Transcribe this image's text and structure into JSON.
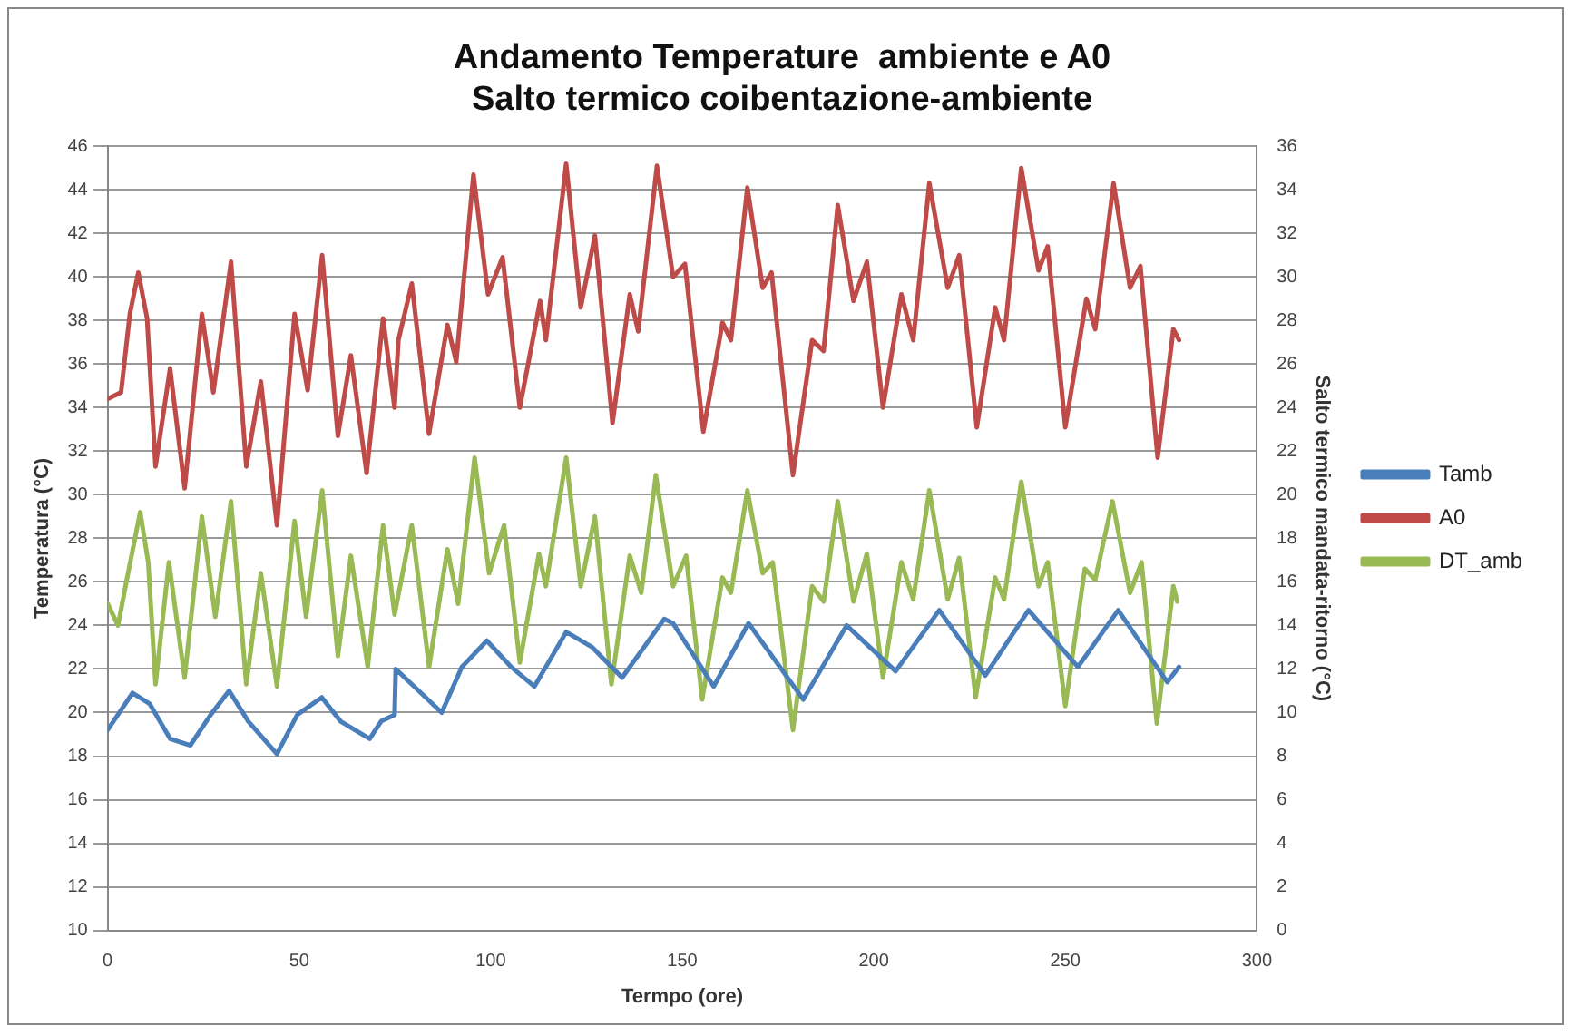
{
  "chart_data": {
    "type": "line",
    "title": "Andamento Temperature  ambiente e A0\nSalto termico coibentazione-ambiente",
    "xlabel": "Termpo (ore)",
    "ylabel": "Temperatura (°C)",
    "y2label": "Salto termico mandata-ritorno (°C)",
    "xlim": [
      0,
      300
    ],
    "xticks": [
      0,
      50,
      100,
      150,
      200,
      250,
      300
    ],
    "ylim": [
      10,
      46
    ],
    "yticks": [
      10,
      12,
      14,
      16,
      18,
      20,
      22,
      24,
      26,
      28,
      30,
      32,
      34,
      36,
      38,
      40,
      42,
      44,
      46
    ],
    "y2lim": [
      0,
      36
    ],
    "y2ticks": [
      0,
      2,
      4,
      6,
      8,
      10,
      12,
      14,
      16,
      18,
      20,
      22,
      24,
      26,
      28,
      30,
      32,
      34,
      36
    ],
    "grid": "y",
    "legend": "right",
    "marker": "none",
    "line_style": "solid",
    "series": [
      {
        "name": "Tamb",
        "color": "#4a7ebb",
        "x": [
          0,
          6.5,
          11,
          16.3,
          21.6,
          26.9,
          31.7,
          36.7,
          44.2,
          49.5,
          55.9,
          60.8,
          68.4,
          71.4,
          74.9,
          75.2,
          81.2,
          87.2,
          92.5,
          99,
          105.3,
          111.4,
          119.7,
          126.5,
          134.3,
          145.3,
          147.6,
          158.2,
          167.3,
          181.6,
          192.9,
          205.7,
          217.1,
          229.1,
          240.4,
          253.3,
          263.8,
          276.6,
          279.7
        ],
        "values": [
          19.2,
          20.9,
          20.4,
          18.8,
          18.5,
          19.9,
          21,
          19.6,
          18.1,
          19.9,
          20.7,
          19.6,
          18.8,
          19.6,
          19.9,
          22,
          21,
          20,
          22.1,
          23.3,
          22.1,
          21.2,
          23.7,
          23,
          21.6,
          24.3,
          24.1,
          21.2,
          24.1,
          20.6,
          24,
          21.9,
          24.7,
          21.7,
          24.7,
          22.1,
          24.7,
          21.4,
          22.1
        ]
      },
      {
        "name": "A0",
        "color": "#be4b48",
        "x": [
          0,
          3.5,
          5.8,
          8,
          10.3,
          12.5,
          16.3,
          20.1,
          24.6,
          27.6,
          32.2,
          36.2,
          40,
          44.2,
          48.8,
          52.2,
          56,
          60.1,
          63.5,
          67.6,
          71.9,
          74.9,
          75.9,
          79.4,
          83.9,
          88.7,
          91,
          95.5,
          99.3,
          103.1,
          107.6,
          112.9,
          114.4,
          119.7,
          123.5,
          127.2,
          131.8,
          136.3,
          138.5,
          143.4,
          147.6,
          150.7,
          155.5,
          160.5,
          162.7,
          167,
          171,
          173.3,
          178.9,
          183.9,
          186.9,
          190.6,
          194.7,
          198.2,
          202.4,
          207.2,
          210.3,
          214.5,
          219.3,
          222.3,
          226.9,
          231.7,
          234,
          238.5,
          243,
          245.4,
          250,
          255.5,
          257.8,
          262.6,
          266.9,
          269.6,
          274.1,
          278.2,
          279.7
        ],
        "values": [
          34.4,
          34.7,
          38.3,
          40.2,
          38.1,
          31.3,
          35.8,
          30.3,
          38.3,
          34.7,
          40.7,
          31.3,
          35.2,
          28.6,
          38.3,
          34.8,
          41,
          32.7,
          36.4,
          31,
          38.1,
          34,
          37.1,
          39.7,
          32.8,
          37.8,
          36.1,
          44.7,
          39.2,
          40.9,
          34,
          38.9,
          37.1,
          45.2,
          38.6,
          41.9,
          33.3,
          39.2,
          37.5,
          45.1,
          40,
          40.6,
          32.9,
          37.9,
          37.1,
          44.1,
          39.5,
          40.2,
          30.9,
          37.1,
          36.6,
          43.3,
          38.9,
          40.7,
          34,
          39.2,
          37.1,
          44.3,
          39.5,
          41,
          33.1,
          38.6,
          37.1,
          45,
          40.3,
          41.4,
          33.1,
          39,
          37.6,
          44.3,
          39.5,
          40.5,
          31.7,
          37.6,
          37.1
        ]
      },
      {
        "name": "DT_amb",
        "color": "#98b954",
        "axis": "y2",
        "x": [
          0,
          2.7,
          5,
          8.5,
          10.6,
          12.5,
          16,
          20.1,
          24.6,
          28.1,
          32.2,
          36.2,
          40,
          44.2,
          48.8,
          51.8,
          56,
          60.1,
          63.5,
          67.9,
          71.9,
          74.9,
          79.4,
          83.9,
          88.7,
          91.5,
          95.8,
          99.6,
          103.5,
          107.6,
          112.6,
          114.4,
          119.7,
          123.5,
          127.2,
          131.5,
          136.3,
          139.3,
          143.1,
          147.6,
          151,
          155.2,
          160.5,
          162.7,
          167,
          171,
          173.6,
          178.9,
          183.9,
          186.9,
          190.6,
          194.7,
          198.2,
          202.4,
          207.2,
          210.3,
          214.5,
          219.3,
          222.3,
          226.6,
          231.7,
          234,
          238.5,
          243,
          245.4,
          250,
          255.1,
          257.8,
          262.3,
          266.9,
          269.9,
          273.9,
          278.2,
          279.2
        ],
        "values": [
          15,
          14,
          16.1,
          19.2,
          16.9,
          11.3,
          16.9,
          11.6,
          19,
          14.4,
          19.7,
          11.3,
          16.4,
          11.2,
          18.8,
          14.4,
          20.2,
          12.6,
          17.2,
          12.1,
          18.6,
          14.5,
          18.6,
          12.1,
          17.5,
          15,
          21.7,
          16.4,
          18.6,
          12.3,
          17.3,
          15.8,
          21.7,
          15.8,
          19,
          11.3,
          17.2,
          15.5,
          20.9,
          15.8,
          17.2,
          10.6,
          16.2,
          15.5,
          20.2,
          16.4,
          16.9,
          9.2,
          15.8,
          15.1,
          19.7,
          15.1,
          17.3,
          11.6,
          16.9,
          15.2,
          20.2,
          15.2,
          17.1,
          10.7,
          16.2,
          15.2,
          20.6,
          15.8,
          16.9,
          10.3,
          16.6,
          16.1,
          19.7,
          15.5,
          16.9,
          9.5,
          15.8,
          15.1
        ]
      }
    ]
  }
}
